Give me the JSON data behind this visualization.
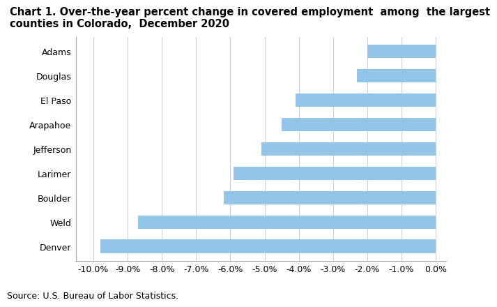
{
  "title": "Chart 1. Over-the-year percent change in covered employment  among  the largest\ncounties in Colorado,  December 2020",
  "categories": [
    "Denver",
    "Weld",
    "Boulder",
    "Larimer",
    "Jefferson",
    "Arapahoe",
    "El Paso",
    "Douglas",
    "Adams"
  ],
  "values": [
    -9.8,
    -8.7,
    -6.2,
    -5.9,
    -5.1,
    -4.5,
    -4.1,
    -2.3,
    -2.0
  ],
  "bar_color": "#92C5E8",
  "xlim": [
    -10.5,
    0.3
  ],
  "xtick_values": [
    -10.0,
    -9.0,
    -8.0,
    -7.0,
    -6.0,
    -5.0,
    -4.0,
    -3.0,
    -2.0,
    -1.0,
    0.0
  ],
  "source_text": "Source: U.S. Bureau of Labor Statistics.",
  "background_color": "#ffffff",
  "grid_color": "#d0d0d0",
  "bar_height": 0.55,
  "title_fontsize": 10.5,
  "tick_fontsize": 9,
  "source_fontsize": 9
}
